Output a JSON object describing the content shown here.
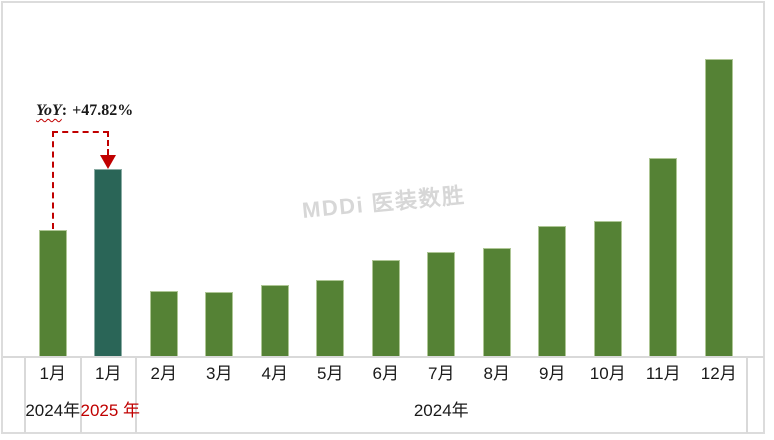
{
  "watermark": {
    "text": "MDDi 医装数胜"
  },
  "colors": {
    "bar_green": "#558235",
    "bar_green_border": "#AEC695",
    "bar_teal": "#2A6557",
    "bar_teal_border": "#8AACA4",
    "annotation_red": "#C00000",
    "grid_gray": "#D9D9D9",
    "text_black": "#1A1A1A",
    "watermark_gray": "#D7D7D7"
  },
  "chart_data": {
    "type": "bar",
    "title": "",
    "xlabel": "",
    "ylabel": "",
    "grid": false,
    "legend": false,
    "y_axis_shown": false,
    "value_basis": "relative index read from bar heights; Jan 2024 = 100",
    "categories": [
      "1月",
      "1月",
      "2月",
      "3月",
      "4月",
      "5月",
      "6月",
      "7月",
      "8月",
      "9月",
      "10月",
      "11月",
      "12月"
    ],
    "values": [
      100,
      147.82,
      52,
      51,
      57,
      61,
      76,
      83,
      86,
      103,
      107,
      157,
      235
    ],
    "highlight_index": 1,
    "year_groups": [
      {
        "label": "2024年",
        "start": 0,
        "end": 0,
        "color": "#1A1A1A"
      },
      {
        "label": "2025 年",
        "start": 1,
        "end": 1,
        "color": "#C00000"
      },
      {
        "label": "2024年",
        "start": 2,
        "end": 12,
        "color": "#1A1A1A"
      }
    ],
    "annotation": {
      "label": "YoY",
      "colon": ":",
      "value": "+47.82%",
      "from_index": 0,
      "to_index": 1
    }
  }
}
